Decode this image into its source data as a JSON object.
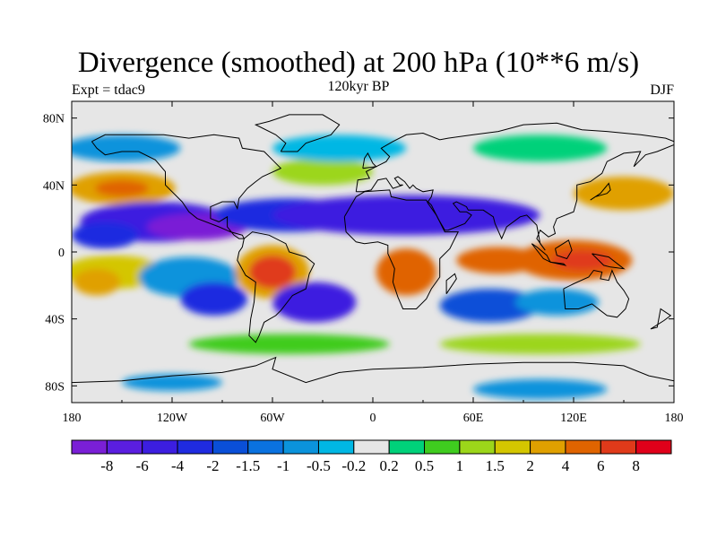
{
  "map": {
    "title": "Divergence (smoothed) at 200 hPa (10**6 m/s)",
    "experiment_label": "Expt = tdac9",
    "period_label": "120kyr BP",
    "season_label": "DJF",
    "projection": "cylindrical-equidistant",
    "lon_range": [
      -180,
      180
    ],
    "lat_range": [
      -90,
      90
    ],
    "lon_ticks": [
      {
        "value": -180,
        "label": "180"
      },
      {
        "value": -120,
        "label": "120W"
      },
      {
        "value": -60,
        "label": "60W"
      },
      {
        "value": 0,
        "label": "0"
      },
      {
        "value": 60,
        "label": "60E"
      },
      {
        "value": 120,
        "label": "120E"
      },
      {
        "value": 180,
        "label": "180"
      }
    ],
    "lat_ticks": [
      {
        "value": 80,
        "label": "80N"
      },
      {
        "value": 40,
        "label": "40N"
      },
      {
        "value": 0,
        "label": "0"
      },
      {
        "value": -40,
        "label": "40S"
      },
      {
        "value": -80,
        "label": "80S"
      }
    ]
  },
  "colorbar": {
    "colors": [
      "#7a1fd6",
      "#5a1ee0",
      "#3c1ee0",
      "#1f2be0",
      "#0a4fd8",
      "#0a72e0",
      "#0b93dc",
      "#00b7e4",
      "#e6e6e6",
      "#00d17a",
      "#3fcc1f",
      "#9cd61a",
      "#d4c600",
      "#e0a000",
      "#e06400",
      "#e03a1a",
      "#e0001a"
    ],
    "labels": [
      "-8",
      "-6",
      "-4",
      "-2",
      "-1.5",
      "-1",
      "-0.5",
      "-0.2",
      "0.2",
      "0.5",
      "1",
      "1.5",
      "2",
      "4",
      "6",
      "8"
    ]
  },
  "field_blobs": [
    {
      "lon": -150,
      "lat": 38,
      "rlon": 32,
      "rlat": 10,
      "level": 13
    },
    {
      "lon": -150,
      "lat": 38,
      "rlon": 16,
      "rlat": 5,
      "level": 14
    },
    {
      "lon": -130,
      "lat": 18,
      "rlon": 45,
      "rlat": 12,
      "level": 2
    },
    {
      "lon": -105,
      "lat": 15,
      "rlon": 30,
      "rlat": 8,
      "level": 0
    },
    {
      "lon": -160,
      "lat": 10,
      "rlon": 20,
      "rlat": 8,
      "level": 3
    },
    {
      "lon": -155,
      "lat": -12,
      "rlon": 30,
      "rlat": 10,
      "level": 12
    },
    {
      "lon": -165,
      "lat": -18,
      "rlon": 14,
      "rlat": 8,
      "level": 13
    },
    {
      "lon": -110,
      "lat": -15,
      "rlon": 30,
      "rlat": 12,
      "level": 6
    },
    {
      "lon": -95,
      "lat": -28,
      "rlon": 20,
      "rlat": 10,
      "level": 3
    },
    {
      "lon": -60,
      "lat": -12,
      "rlon": 22,
      "rlat": 16,
      "level": 13
    },
    {
      "lon": -60,
      "lat": -12,
      "rlon": 14,
      "rlat": 10,
      "level": 15
    },
    {
      "lon": -35,
      "lat": -30,
      "rlon": 25,
      "rlat": 12,
      "level": 2
    },
    {
      "lon": -50,
      "lat": 22,
      "rlon": 45,
      "rlat": 10,
      "level": 3
    },
    {
      "lon": 20,
      "lat": 22,
      "rlon": 80,
      "rlat": 12,
      "level": 2
    },
    {
      "lon": 20,
      "lat": -12,
      "rlon": 18,
      "rlat": 14,
      "level": 14
    },
    {
      "lon": 75,
      "lat": -5,
      "rlon": 25,
      "rlat": 8,
      "level": 14
    },
    {
      "lon": 120,
      "lat": -5,
      "rlon": 35,
      "rlat": 12,
      "level": 14
    },
    {
      "lon": 125,
      "lat": -5,
      "rlon": 18,
      "rlat": 6,
      "level": 15
    },
    {
      "lon": 150,
      "lat": 35,
      "rlon": 30,
      "rlat": 10,
      "level": 13
    },
    {
      "lon": 70,
      "lat": -32,
      "rlon": 30,
      "rlat": 10,
      "level": 4
    },
    {
      "lon": 110,
      "lat": -30,
      "rlon": 25,
      "rlat": 8,
      "level": 6
    },
    {
      "lon": -30,
      "lat": 48,
      "rlon": 30,
      "rlat": 8,
      "level": 11
    },
    {
      "lon": -20,
      "lat": 62,
      "rlon": 40,
      "rlat": 8,
      "level": 7
    },
    {
      "lon": -150,
      "lat": 62,
      "rlon": 35,
      "rlat": 8,
      "level": 6
    },
    {
      "lon": 100,
      "lat": 62,
      "rlon": 40,
      "rlat": 8,
      "level": 9
    },
    {
      "lon": -50,
      "lat": -55,
      "rlon": 60,
      "rlat": 6,
      "level": 10
    },
    {
      "lon": 100,
      "lat": -55,
      "rlon": 60,
      "rlat": 6,
      "level": 11
    },
    {
      "lon": 100,
      "lat": -82,
      "rlon": 40,
      "rlat": 6,
      "level": 6
    },
    {
      "lon": -120,
      "lat": -78,
      "rlon": 30,
      "rlat": 5,
      "level": 6
    }
  ]
}
